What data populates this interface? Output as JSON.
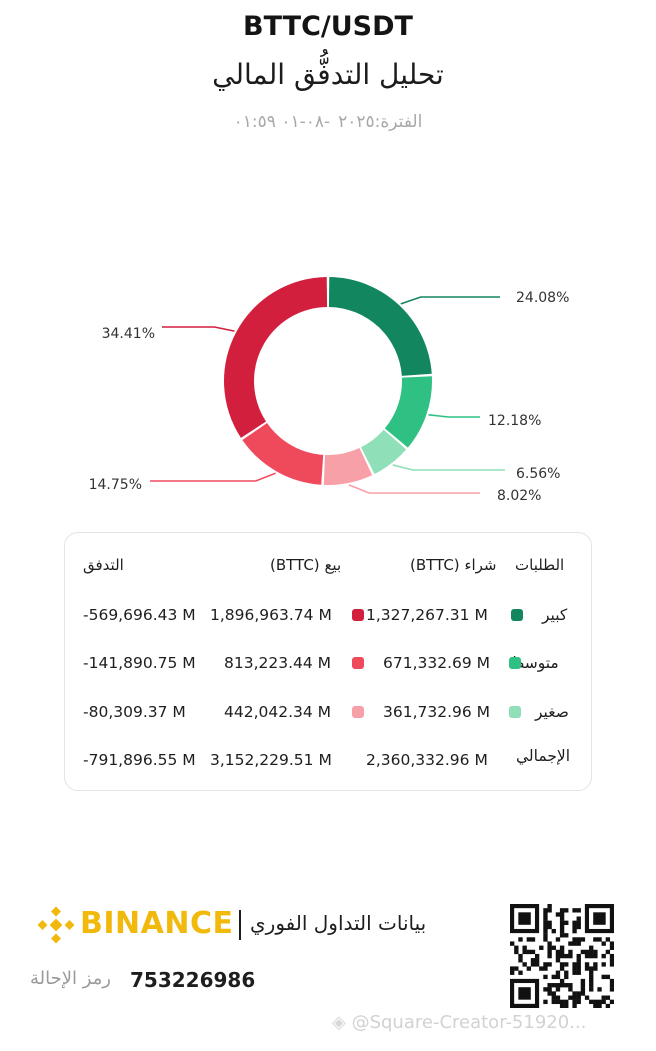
{
  "header": {
    "title": "BTTC/USDT",
    "subtitle": "تحليل التدفُّق المالي",
    "period_label": "الفترة:",
    "period_value": "٢٠٢٥-٠٨-٠١ ٠١:٥٩"
  },
  "chart_data": {
    "type": "pie",
    "donut": true,
    "categories": [
      "كبير شراء",
      "متوسط شراء",
      "صغير شراء",
      "صغير بيع",
      "متوسط بيع",
      "كبير بيع"
    ],
    "values": [
      24.08,
      12.18,
      6.56,
      8.02,
      14.75,
      34.41
    ],
    "labels": [
      "24.08%",
      "12.18%",
      "6.56%",
      "8.02%",
      "14.75%",
      "34.41%"
    ],
    "colors": [
      "#12875f",
      "#2fc184",
      "#8fe0b8",
      "#f7a0a8",
      "#ef4a5c",
      "#d21f3e"
    ]
  },
  "table": {
    "headers": {
      "orders": "الطلبات",
      "buy": "شراء",
      "buy_unit": "(BTTC)",
      "sell": "بيع",
      "sell_unit": "(BTTC)",
      "flow": "التدفق"
    },
    "rows": [
      {
        "label": "كبير",
        "buy": "1,327,267.31 M",
        "sell": "1,896,963.74 M",
        "flow": "-569,696.43 M",
        "buy_color": "#12875f",
        "sell_color": "#d21f3e"
      },
      {
        "label": "متوسط",
        "buy": "671,332.69 M",
        "sell": "813,223.44 M",
        "flow": "-141,890.75 M",
        "buy_color": "#2fc184",
        "sell_color": "#ef4a5c"
      },
      {
        "label": "صغير",
        "buy": "361,732.96 M",
        "sell": "442,042.34 M",
        "flow": "-80,309.37 M",
        "buy_color": "#8fe0b8",
        "sell_color": "#f7a0a8"
      }
    ],
    "total": {
      "label": "الإجمالي",
      "buy": "2,360,332.96 M",
      "sell": "3,152,229.51 M",
      "flow": "-791,896.55 M"
    }
  },
  "footer": {
    "brand": "BINANCE",
    "tagline": "بيانات التداول الفوري",
    "referral_label": "رمز الإحالة",
    "referral_code": "753226986",
    "watermark": "@Square-Creator-51920..."
  }
}
